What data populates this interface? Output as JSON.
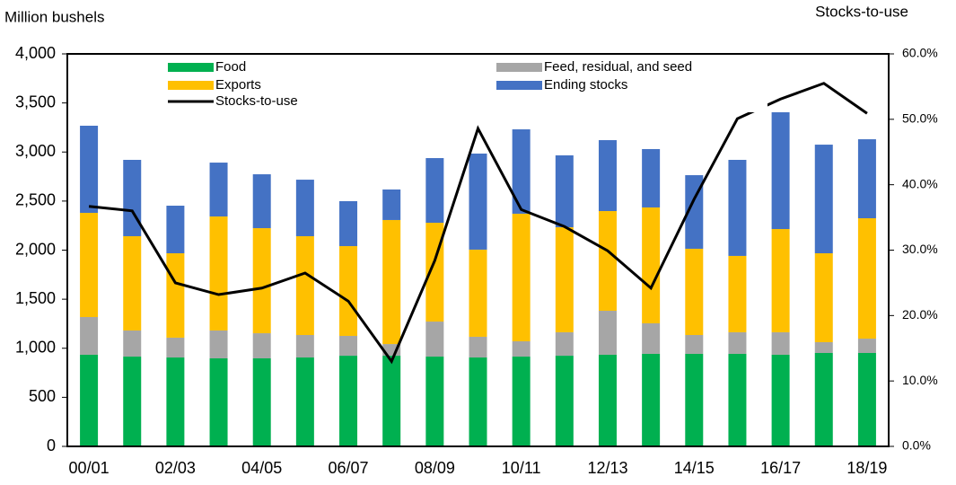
{
  "chart_data": {
    "type": "stacked_bar_line",
    "ylabel": "Million bushels",
    "y2label": "Stocks-to-use",
    "categories": [
      "00/01",
      null,
      "02/03",
      null,
      "04/05",
      null,
      "06/07",
      null,
      "08/09",
      null,
      "10/11",
      null,
      "12/13",
      null,
      "14/15",
      null,
      "16/17",
      null,
      "18/19"
    ],
    "series": [
      {
        "name": "Food",
        "color": "#00b050",
        "values": [
          934,
          915,
          906,
          897,
          897,
          906,
          924,
          924,
          915,
          906,
          915,
          924,
          934,
          943,
          943,
          943,
          934,
          952,
          952
        ]
      },
      {
        "name": "Feed, residual, and seed",
        "color": "#a6a6a6",
        "values": [
          384,
          266,
          202,
          284,
          256,
          229,
          202,
          119,
          357,
          211,
          156,
          239,
          448,
          311,
          192,
          220,
          229,
          110,
          146
        ]
      },
      {
        "name": "Exports",
        "color": "#ffc000",
        "values": [
          1062,
          961,
          860,
          1162,
          1071,
          1007,
          915,
          1264,
          1007,
          888,
          1300,
          1070,
          1016,
          1181,
          879,
          778,
          1052,
          906,
          1227
        ]
      },
      {
        "name": "Ending stocks",
        "color": "#4472c4",
        "values": [
          888,
          778,
          485,
          549,
          549,
          576,
          458,
          311,
          659,
          979,
          860,
          733,
          723,
          595,
          750,
          979,
          1190,
          1107,
          805
        ]
      },
      {
        "name": "Stocks-to-use",
        "color": "#000000",
        "axis": "y2",
        "values": [
          36.7,
          36.0,
          25.0,
          23.2,
          24.2,
          26.5,
          22.2,
          13.0,
          28.4,
          48.6,
          36.2,
          33.6,
          29.9,
          24.2,
          37.8,
          50.1,
          53.1,
          55.5,
          50.9
        ]
      }
    ],
    "ylim": [
      0,
      4000
    ],
    "yticks": [
      0,
      500,
      {
        "value": 1000,
        "label": "1,000"
      },
      {
        "value": 1500,
        "label": "1,500"
      },
      {
        "value": 2000,
        "label": "2,000"
      },
      {
        "value": 2500,
        "label": "2,500"
      },
      {
        "value": 3000,
        "label": "3,000"
      },
      {
        "value": 3500,
        "label": "3,500"
      },
      {
        "value": 4000,
        "label": "4,000"
      }
    ],
    "y2lim": [
      0,
      60
    ],
    "y2ticks": [
      {
        "value": 0,
        "label": "0.0%"
      },
      {
        "value": 10,
        "label": "10.0%"
      },
      {
        "value": 20,
        "label": "20.0%"
      },
      {
        "value": 30,
        "label": "30.0%"
      },
      {
        "value": 40,
        "label": "40.0%"
      },
      {
        "value": 50,
        "label": "50.0%"
      },
      {
        "value": 60,
        "label": "60.0%"
      }
    ]
  }
}
